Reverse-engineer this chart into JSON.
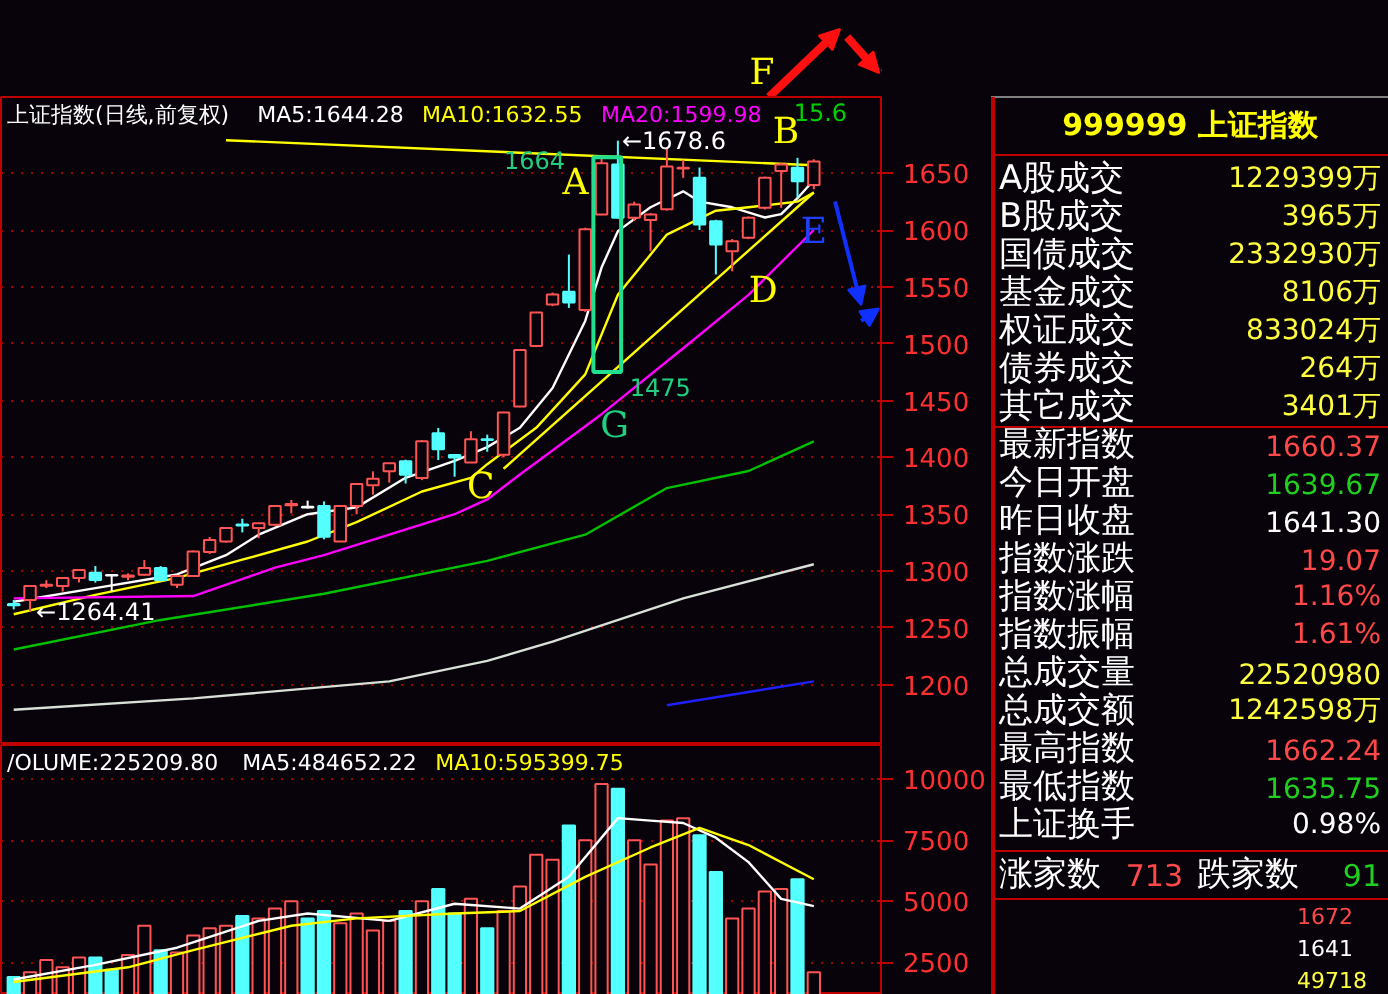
{
  "chart_data": [
    {
      "type": "candlestick",
      "title": "上证指数(日线,前复权)",
      "legend": "top",
      "grid": "y",
      "tick_labels": "y",
      "categories": [
        null,
        null,
        null,
        null,
        null,
        null,
        null,
        null,
        null,
        null,
        null,
        null,
        null,
        null,
        null,
        null,
        null,
        null,
        null,
        null,
        null,
        null,
        null,
        null,
        null,
        null,
        null,
        null,
        null,
        null,
        null,
        null,
        null,
        null,
        null,
        null,
        null,
        null,
        null,
        null,
        null,
        null,
        null,
        null,
        null,
        null,
        null,
        null,
        null,
        null
      ],
      "ohlc": [
        [
          1271,
          1274.5,
          1266.3,
          1270
        ],
        [
          1274.5,
          1287,
          1264.41,
          1286.8
        ],
        [
          1287,
          1292,
          1285,
          1288
        ],
        [
          1286.8,
          1294,
          1282,
          1293.9
        ],
        [
          1293.9,
          1301,
          1290,
          1300.9
        ],
        [
          1298.5,
          1304.4,
          1289.8,
          1292.1
        ],
        [
          1296.5,
          1297,
          1282,
          1296
        ],
        [
          1295,
          1298,
          1292,
          1296
        ],
        [
          1296.8,
          1309.7,
          1296,
          1302.7
        ],
        [
          1302.7,
          1304.4,
          1291,
          1292.1
        ],
        [
          1288,
          1296,
          1285,
          1295.6
        ],
        [
          1295.6,
          1318,
          1295,
          1317.3
        ],
        [
          1316.8,
          1330,
          1315,
          1327.3
        ],
        [
          1326,
          1338,
          1325,
          1337.9
        ],
        [
          1341,
          1346,
          1334,
          1340
        ],
        [
          1337.9,
          1342,
          1329,
          1342
        ],
        [
          1340.8,
          1358,
          1340,
          1357.2
        ],
        [
          1358,
          1362.5,
          1350.8,
          1359
        ],
        [
          1356.5,
          1362,
          1355,
          1356
        ],
        [
          1357.2,
          1361.3,
          1327.9,
          1330.2
        ],
        [
          1326,
          1358,
          1326,
          1357.2
        ],
        [
          1357.2,
          1377,
          1350,
          1376.6
        ],
        [
          1375.4,
          1387.7,
          1367.2,
          1381.3
        ],
        [
          1387.7,
          1395,
          1377.8,
          1394.8
        ],
        [
          1396.5,
          1398,
          1377,
          1384.8
        ],
        [
          1381.9,
          1415,
          1380,
          1414.1
        ],
        [
          1421.2,
          1425.9,
          1397.7,
          1407.1
        ],
        [
          1402,
          1403,
          1383,
          1400
        ],
        [
          1395.4,
          1423,
          1395,
          1415.9
        ],
        [
          1416,
          1420,
          1405,
          1415.3
        ],
        [
          1402.4,
          1440,
          1400,
          1439.4
        ],
        [
          1444.7,
          1495,
          1444,
          1494.5
        ],
        [
          1498,
          1528,
          1497,
          1527.4
        ],
        [
          1534.4,
          1545,
          1533,
          1543.2
        ],
        [
          1545.6,
          1578.4,
          1531.5,
          1536.2
        ],
        [
          1529.7,
          1602,
          1528,
          1600.7
        ],
        [
          1613.6,
          1664,
          1613,
          1658.8
        ],
        [
          1657.6,
          1678.6,
          1610,
          1610.7
        ],
        [
          1610.7,
          1625,
          1608,
          1622.4
        ],
        [
          1608.9,
          1615,
          1581.3,
          1613.6
        ],
        [
          1618.3,
          1672.3,
          1617,
          1655.9
        ],
        [
          1654.2,
          1661.7,
          1645.9,
          1654.7
        ],
        [
          1645.9,
          1655,
          1600,
          1604.8
        ],
        [
          1607.8,
          1609,
          1560.9,
          1587.2
        ],
        [
          1581.3,
          1592,
          1563.7,
          1590.2
        ],
        [
          1593.1,
          1612,
          1592,
          1610.7
        ],
        [
          1619.5,
          1647,
          1618,
          1645.9
        ],
        [
          1651.8,
          1659,
          1619.5,
          1657.6
        ],
        [
          1654.7,
          1663.5,
          1628.3,
          1643
        ],
        [
          1639.67,
          1662.24,
          1635.75,
          1660.37
        ]
      ],
      "colors": [
        "#54ffff",
        "#ff5454",
        "#ff5454",
        "#ff5454",
        "#ff5454",
        "#54ffff",
        "#ffffff",
        "#ff5454",
        "#ff5454",
        "#54ffff",
        "#ff5454",
        "#ff5454",
        "#ff5454",
        "#ff5454",
        "#54ffff",
        "#ff5454",
        "#ff5454",
        "#ff5454",
        "#ffffff",
        "#54ffff",
        "#ff5454",
        "#ff5454",
        "#ff5454",
        "#ff5454",
        "#54ffff",
        "#ff5454",
        "#54ffff",
        "#54ffff",
        "#ff5454",
        "#54ffff",
        "#ff5454",
        "#ff5454",
        "#ff5454",
        "#ff5454",
        "#54ffff",
        "#ff5454",
        "#ff5454",
        "#54ffff",
        "#ff5454",
        "#ff5454",
        "#ff5454",
        "#ff5454",
        "#54ffff",
        "#54ffff",
        "#ff5454",
        "#ff5454",
        "#ff5454",
        "#ff5454",
        "#54ffff",
        "#ff5454"
      ],
      "series": [
        {
          "type": "line",
          "name": "MA5:1644.28",
          "color": "#ffffff",
          "values": [
            1273,
            null,
            null,
            null,
            null,
            1285,
            null,
            null,
            null,
            null,
            1297,
            null,
            null,
            1314,
            null,
            1332,
            null,
            null,
            1350,
            null,
            null,
            1356,
            null,
            null,
            1382,
            null,
            null,
            1397,
            null,
            1409,
            null,
            1426,
            null,
            1461,
            null,
            1520,
            1567,
            1599,
            null,
            1620,
            null,
            1634,
            1625,
            null,
            1620,
            null,
            1611,
            1614,
            1628,
            1644
          ]
        },
        {
          "type": "line",
          "name": "MA10:1632.55",
          "color": "#ffff00",
          "values": [
            1262,
            null,
            null,
            null,
            null,
            1279,
            null,
            null,
            null,
            null,
            1294,
            null,
            null,
            null,
            1310,
            null,
            null,
            null,
            1326,
            null,
            null,
            1343,
            null,
            null,
            null,
            1370,
            null,
            null,
            1382,
            1394,
            null,
            null,
            1426,
            null,
            null,
            1473,
            null,
            1543,
            null,
            null,
            1596,
            null,
            null,
            1617,
            null,
            1620,
            null,
            null,
            1625,
            1633
          ]
        },
        {
          "type": "line",
          "name": "MA20:1599.98",
          "color": "#ff00ff",
          "values": [
            1276,
            null,
            null,
            null,
            null,
            null,
            null,
            null,
            null,
            null,
            null,
            1278,
            null,
            null,
            null,
            null,
            1303,
            null,
            null,
            1314,
            null,
            null,
            null,
            1332,
            null,
            null,
            null,
            1350,
            null,
            1363,
            null,
            1385,
            null,
            null,
            null,
            null,
            1438,
            null,
            null,
            null,
            null,
            1496,
            null,
            null,
            null,
            1543,
            null,
            null,
            null,
            1600
          ]
        },
        {
          "type": "line",
          "color": "#00c000",
          "values": [
            1231,
            null,
            null,
            null,
            null,
            null,
            null,
            null,
            null,
            1257,
            null,
            null,
            null,
            null,
            null,
            null,
            null,
            null,
            null,
            1280,
            null,
            null,
            null,
            null,
            null,
            null,
            null,
            null,
            null,
            1309,
            null,
            null,
            null,
            null,
            null,
            1332,
            null,
            null,
            null,
            null,
            1373,
            null,
            null,
            null,
            null,
            1388,
            null,
            null,
            null,
            1414
          ]
        },
        {
          "type": "line",
          "color": "#d8e0d8",
          "values": [
            1178,
            null,
            null,
            null,
            null,
            null,
            null,
            null,
            null,
            null,
            null,
            1188,
            null,
            null,
            null,
            null,
            null,
            null,
            null,
            null,
            null,
            null,
            null,
            1203,
            null,
            null,
            null,
            null,
            null,
            1221,
            null,
            null,
            null,
            1238,
            null,
            null,
            null,
            null,
            null,
            null,
            null,
            1276,
            null,
            null,
            null,
            null,
            null,
            null,
            null,
            1306
          ]
        },
        {
          "type": "line",
          "color": "#2020ff",
          "values": [
            null,
            null,
            null,
            null,
            null,
            null,
            null,
            null,
            null,
            null,
            null,
            null,
            null,
            null,
            null,
            null,
            null,
            null,
            null,
            null,
            null,
            null,
            null,
            null,
            null,
            null,
            null,
            null,
            null,
            null,
            null,
            null,
            null,
            null,
            null,
            null,
            null,
            null,
            null,
            null,
            1182,
            null,
            null,
            null,
            null,
            null,
            null,
            null,
            null,
            1203
          ]
        },
        {
          "type": "line",
          "color": "#ffff00",
          "values": [
            null,
            null,
            null,
            null,
            null,
            null,
            null,
            null,
            null,
            null,
            null,
            null,
            null,
            null,
            null,
            null,
            null,
            null,
            null,
            null,
            null,
            null,
            null,
            null,
            null,
            null,
            null,
            null,
            null,
            null,
            1390,
            null,
            null,
            null,
            null,
            null,
            null,
            null,
            null,
            null,
            null,
            null,
            null,
            null,
            null,
            null,
            null,
            null,
            null,
            1633
          ]
        },
        {
          "type": "line",
          "color": "#ffff00",
          "values": [
            null,
            null,
            null,
            null,
            null,
            null,
            null,
            null,
            null,
            null,
            null,
            null,
            null,
            1679,
            null,
            null,
            null,
            null,
            null,
            null,
            null,
            null,
            null,
            null,
            null,
            null,
            null,
            null,
            null,
            null,
            null,
            null,
            null,
            null,
            null,
            null,
            null,
            null,
            null,
            null,
            null,
            null,
            null,
            null,
            null,
            null,
            null,
            null,
            null,
            1657
          ]
        }
      ],
      "ylim": [
        1147,
        1717
      ],
      "yticks": [
        1200,
        1250,
        1300,
        1350,
        1400,
        1450,
        1500,
        1550,
        1600,
        1650
      ],
      "annotations": [
        "A",
        "B",
        "C",
        "D",
        "E",
        "F",
        "G",
        "1664",
        "1475",
        "←1678.6",
        "←1264.41",
        "15.6"
      ]
    },
    {
      "type": "bar",
      "title": "/OLUME:225209.80",
      "legend": "top",
      "grid": "y",
      "tick_labels": "y",
      "categories": [
        null,
        null,
        null,
        null,
        null,
        null,
        null,
        null,
        null,
        null,
        null,
        null,
        null,
        null,
        null,
        null,
        null,
        null,
        null,
        null,
        null,
        null,
        null,
        null,
        null,
        null,
        null,
        null,
        null,
        null,
        null,
        null,
        null,
        null,
        null,
        null,
        null,
        null,
        null,
        null,
        null,
        null,
        null,
        null,
        null,
        null,
        null,
        null,
        null,
        null
      ],
      "series": [
        {
          "type": "bar",
          "values": [
            1900,
            2100,
            2600,
            2300,
            2700,
            2700,
            2200,
            2800,
            4000,
            3000,
            2900,
            3600,
            3900,
            4000,
            4400,
            4300,
            4700,
            5000,
            4300,
            4600,
            4100,
            4500,
            3800,
            4200,
            4600,
            5000,
            5500,
            4500,
            5100,
            3900,
            4600,
            5600,
            6900,
            6700,
            8100,
            7500,
            9800,
            9600,
            7500,
            6500,
            8300,
            8400,
            7700,
            6200,
            4300,
            4700,
            5400,
            5500,
            5900,
            2100
          ],
          "colors": [
            "#54ffff",
            "#ff5454",
            "#ff5454",
            "#ff5454",
            "#ff5454",
            "#54ffff",
            "#54ffff",
            "#ff5454",
            "#ff5454",
            "#54ffff",
            "#ff5454",
            "#ff5454",
            "#ff5454",
            "#ff5454",
            "#54ffff",
            "#ff5454",
            "#ff5454",
            "#ff5454",
            "#54ffff",
            "#54ffff",
            "#ff5454",
            "#ff5454",
            "#ff5454",
            "#ff5454",
            "#54ffff",
            "#ff5454",
            "#54ffff",
            "#54ffff",
            "#ff5454",
            "#54ffff",
            "#ff5454",
            "#ff5454",
            "#ff5454",
            "#ff5454",
            "#54ffff",
            "#ff5454",
            "#ff5454",
            "#54ffff",
            "#ff5454",
            "#ff5454",
            "#ff5454",
            "#ff5454",
            "#54ffff",
            "#54ffff",
            "#ff5454",
            "#ff5454",
            "#ff5454",
            "#ff5454",
            "#54ffff",
            "#ff5454"
          ]
        },
        {
          "type": "line",
          "name": "MA5:484652.22",
          "color": "#ffffff",
          "values": [
            1800,
            null,
            null,
            null,
            null,
            2400,
            null,
            null,
            null,
            null,
            3100,
            null,
            null,
            null,
            null,
            4200,
            null,
            null,
            4500,
            null,
            null,
            null,
            null,
            4200,
            null,
            null,
            null,
            4900,
            null,
            null,
            null,
            4700,
            null,
            null,
            6000,
            null,
            null,
            8400,
            null,
            8300,
            null,
            8200,
            null,
            7600,
            null,
            6600,
            null,
            5100,
            null,
            4800
          ]
        },
        {
          "type": "line",
          "name": "MA10:595399.75",
          "color": "#ffff00",
          "values": [
            1700,
            null,
            null,
            null,
            null,
            null,
            null,
            2300,
            null,
            null,
            null,
            3000,
            null,
            null,
            null,
            null,
            null,
            4000,
            null,
            null,
            null,
            4300,
            null,
            null,
            null,
            null,
            null,
            4500,
            null,
            null,
            null,
            4600,
            null,
            null,
            null,
            6000,
            null,
            null,
            null,
            7200,
            null,
            null,
            8000,
            null,
            null,
            7300,
            null,
            null,
            null,
            5900
          ]
        }
      ],
      "ylim": [
        1167,
        11391
      ],
      "yticks": [
        2500,
        5000,
        7500,
        10000
      ]
    },
    {
      "type": "other",
      "title": "999999 上证指数",
      "annotations": [
        "A股成交",
        "1229399万",
        "B股成交",
        "3965万",
        "国债成交",
        "2332930万",
        "基金成交",
        "8106万",
        "权证成交",
        "833024万",
        "债券成交",
        "264万",
        "其它成交",
        "3401万",
        "最新指数",
        "1660.37",
        "今日开盘",
        "1639.67",
        "昨日收盘",
        "1641.30",
        "指数涨跌",
        "19.07",
        "指数涨幅",
        "1.16%",
        "指数振幅",
        "1.61%",
        "总成交量",
        "22520980",
        "总成交额",
        "1242598万",
        "最高指数",
        "1662.24",
        "最低指数",
        "1635.75",
        "上证换手",
        "0.98%",
        "涨家数",
        "713",
        "跌家数",
        "91",
        "1672",
        "1641",
        "49718"
      ]
    }
  ]
}
